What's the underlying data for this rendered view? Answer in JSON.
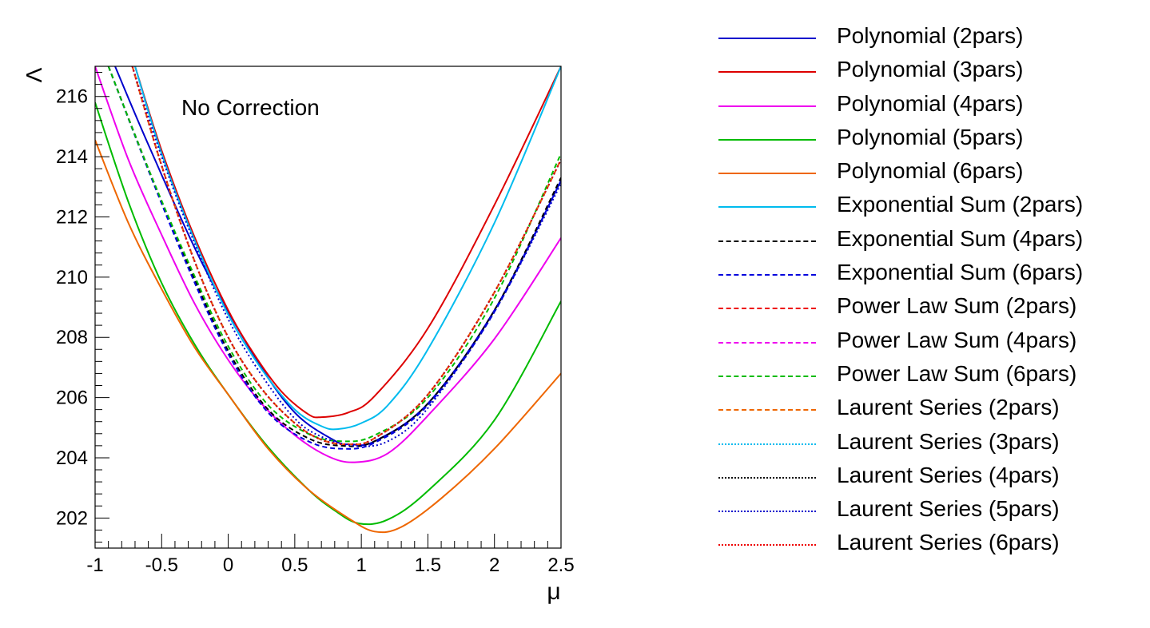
{
  "chart_data": {
    "type": "line",
    "annotation": "No Correction",
    "xlabel": "μ",
    "ylabel": "Λ",
    "xlim": [
      -1,
      2.5
    ],
    "ylim": [
      201.0,
      217.0
    ],
    "x_ticks": [
      "-1",
      "-0.5",
      "0",
      "0.5",
      "1",
      "1.5",
      "2",
      "2.5"
    ],
    "y_ticks": [
      "202",
      "204",
      "206",
      "208",
      "210",
      "212",
      "214",
      "216"
    ],
    "legend_position": "right",
    "series": [
      {
        "name": "Polynomial (2pars)",
        "color": "#0000cc",
        "style": "solid",
        "x": [
          -0.85,
          -0.6,
          -0.2,
          0.2,
          0.5,
          0.8,
          0.92,
          1.1,
          1.5,
          2.0,
          2.5
        ],
        "y": [
          217.0,
          214.4,
          210.5,
          207.35,
          205.5,
          204.57,
          204.45,
          204.55,
          205.8,
          208.9,
          213.2
        ]
      },
      {
        "name": "Polynomial (3pars)",
        "color": "#dd0000",
        "style": "solid",
        "x": [
          -0.7,
          -0.5,
          -0.25,
          0.0,
          0.2,
          0.4,
          0.6,
          0.7,
          0.9,
          1.1,
          1.5,
          2.0,
          2.5
        ],
        "y": [
          217.0,
          214.2,
          211.3,
          208.9,
          207.4,
          206.2,
          205.45,
          205.35,
          205.5,
          206.05,
          208.3,
          212.4,
          217.0
        ]
      },
      {
        "name": "Polynomial (4pars)",
        "color": "#ee00ee",
        "style": "solid",
        "x": [
          -1.0,
          -0.75,
          -0.5,
          -0.25,
          0.0,
          0.25,
          0.5,
          0.75,
          0.95,
          1.2,
          1.5,
          2.0,
          2.5
        ],
        "y": [
          217.0,
          213.9,
          211.4,
          209.1,
          207.25,
          205.8,
          204.75,
          204.05,
          203.85,
          204.15,
          205.4,
          207.95,
          211.3
        ]
      },
      {
        "name": "Polynomial (5pars)",
        "color": "#00bb00",
        "style": "solid",
        "x": [
          -1.0,
          -0.75,
          -0.5,
          -0.25,
          0.0,
          0.3,
          0.6,
          0.8,
          0.98,
          1.2,
          1.5,
          2.0,
          2.5
        ],
        "y": [
          215.8,
          212.5,
          209.8,
          207.75,
          206.1,
          204.35,
          202.95,
          202.25,
          201.82,
          201.95,
          202.9,
          205.25,
          209.2
        ]
      },
      {
        "name": "Polynomial (6pars)",
        "color": "#ee6600",
        "style": "solid",
        "x": [
          -1.0,
          -0.75,
          -0.5,
          -0.25,
          0.0,
          0.3,
          0.6,
          0.9,
          1.1,
          1.3,
          1.6,
          2.0,
          2.5
        ],
        "y": [
          214.55,
          211.8,
          209.6,
          207.65,
          206.1,
          204.3,
          202.95,
          202.0,
          201.55,
          201.7,
          202.65,
          204.3,
          206.8
        ]
      },
      {
        "name": "Exponential Sum (2pars)",
        "color": "#00bbee",
        "style": "solid",
        "x": [
          -0.7,
          -0.5,
          -0.25,
          0.0,
          0.25,
          0.5,
          0.7,
          0.82,
          1.0,
          1.2,
          1.5,
          2.0,
          2.5
        ],
        "y": [
          217.0,
          214.1,
          211.2,
          208.75,
          206.95,
          205.6,
          205.05,
          204.95,
          205.15,
          205.75,
          207.6,
          211.8,
          217.0
        ]
      },
      {
        "name": "Exponential Sum (4pars)",
        "color": "#000000",
        "style": "dashed",
        "x": [
          -0.9,
          -0.6,
          -0.3,
          0.0,
          0.3,
          0.6,
          0.85,
          1.1,
          1.5,
          2.0,
          2.5
        ],
        "y": [
          217.0,
          213.6,
          210.4,
          207.55,
          205.6,
          204.65,
          204.4,
          204.55,
          205.8,
          208.9,
          213.3
        ]
      },
      {
        "name": "Exponential Sum (6pars)",
        "color": "#0000dd",
        "style": "dashed",
        "x": [
          -0.9,
          -0.6,
          -0.3,
          0.0,
          0.3,
          0.6,
          0.85,
          1.1,
          1.5,
          2.0,
          2.5
        ],
        "y": [
          217.0,
          213.55,
          210.3,
          207.45,
          205.5,
          204.55,
          204.3,
          204.5,
          205.75,
          208.85,
          213.2
        ]
      },
      {
        "name": "Power Law Sum (2pars)",
        "color": "#ee0000",
        "style": "dashed",
        "x": [
          -0.72,
          -0.5,
          -0.25,
          0.0,
          0.25,
          0.5,
          0.7,
          0.9,
          1.1,
          1.5,
          2.0,
          2.5
        ],
        "y": [
          217.0,
          213.7,
          210.5,
          208.0,
          206.3,
          205.15,
          204.6,
          204.45,
          204.65,
          206.1,
          209.5,
          213.9
        ]
      },
      {
        "name": "Power Law Sum (4pars)",
        "color": "#ee00ee",
        "style": "dashed",
        "x": [
          -0.72,
          -0.5,
          -0.25,
          0.0,
          0.25,
          0.5,
          0.7,
          0.9,
          1.1,
          1.5,
          2.0,
          2.5
        ],
        "y": [
          217.0,
          213.7,
          210.5,
          208.0,
          206.3,
          205.15,
          204.6,
          204.45,
          204.65,
          206.1,
          209.5,
          213.9
        ]
      },
      {
        "name": "Power Law Sum (6pars)",
        "color": "#00bb00",
        "style": "dashed",
        "x": [
          -0.9,
          -0.6,
          -0.3,
          0.0,
          0.3,
          0.6,
          0.85,
          1.1,
          1.5,
          2.0,
          2.5
        ],
        "y": [
          217.0,
          213.6,
          210.5,
          207.7,
          205.75,
          204.8,
          204.55,
          204.75,
          206.0,
          209.3,
          214.1
        ]
      },
      {
        "name": "Laurent Series (2pars)",
        "color": "#ee6600",
        "style": "dashed",
        "x": [
          -0.72,
          -0.5,
          -0.25,
          0.0,
          0.25,
          0.5,
          0.7,
          0.9,
          1.1,
          1.5,
          2.0,
          2.5
        ],
        "y": [
          217.0,
          213.7,
          210.5,
          208.0,
          206.3,
          205.15,
          204.6,
          204.45,
          204.65,
          206.1,
          209.5,
          213.9
        ]
      },
      {
        "name": "Laurent Series (3pars)",
        "color": "#00bbee",
        "style": "dotted",
        "x": [
          -0.72,
          -0.5,
          -0.25,
          0.0,
          0.25,
          0.5,
          0.7,
          0.9,
          1.1,
          1.5,
          2.0,
          2.5
        ],
        "y": [
          217.0,
          213.7,
          210.5,
          208.0,
          206.3,
          205.15,
          204.6,
          204.45,
          204.65,
          206.1,
          209.5,
          213.9
        ]
      },
      {
        "name": "Laurent Series (4pars)",
        "color": "#000000",
        "style": "dotted",
        "x": [
          -0.72,
          -0.5,
          -0.25,
          0.0,
          0.25,
          0.5,
          0.7,
          0.9,
          1.1,
          1.5,
          2.0,
          2.5
        ],
        "y": [
          217.0,
          213.7,
          210.5,
          208.0,
          206.3,
          205.15,
          204.6,
          204.45,
          204.65,
          206.1,
          209.5,
          213.9
        ]
      },
      {
        "name": "Laurent Series (5pars)",
        "color": "#0000cc",
        "style": "dotted",
        "x": [
          -0.72,
          -0.5,
          -0.25,
          0.0,
          0.25,
          0.5,
          0.7,
          0.95,
          1.2,
          1.5,
          2.0,
          2.5
        ],
        "y": [
          217.0,
          214.0,
          211.1,
          208.6,
          206.75,
          205.3,
          204.7,
          204.4,
          204.55,
          205.65,
          208.85,
          213.1
        ]
      },
      {
        "name": "Laurent Series (6pars)",
        "color": "#ee0000",
        "style": "dotted",
        "x": [
          -0.72,
          -0.5,
          -0.25,
          0.0,
          0.25,
          0.5,
          0.7,
          0.9,
          1.1,
          1.5,
          2.0,
          2.5
        ],
        "y": [
          217.0,
          213.7,
          210.5,
          208.0,
          206.3,
          205.15,
          204.6,
          204.45,
          204.65,
          206.1,
          209.5,
          213.9
        ]
      }
    ]
  }
}
